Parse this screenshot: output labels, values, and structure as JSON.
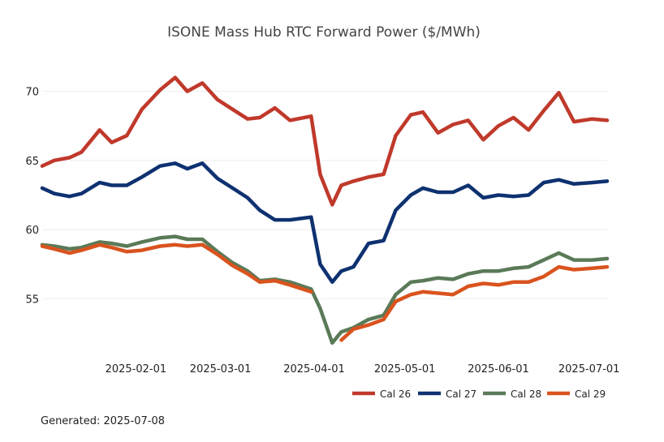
{
  "chart_data": {
    "type": "line",
    "title": "ISONE Mass Hub RTC Forward Power ($/MWh)",
    "xlabel": "",
    "ylabel": "",
    "xlim": [
      "2025-01-01",
      "2025-07-07"
    ],
    "ylim": [
      50.5,
      72.5
    ],
    "yticks": [
      55,
      60,
      65,
      70
    ],
    "xticks": [
      "2025-02-01",
      "2025-03-01",
      "2025-04-01",
      "2025-05-01",
      "2025-06-01",
      "2025-07-01"
    ],
    "grid": "y",
    "legend": "bottom-right",
    "x": [
      "2025-01-01",
      "2025-01-05",
      "2025-01-10",
      "2025-01-14",
      "2025-01-20",
      "2025-01-24",
      "2025-01-29",
      "2025-02-03",
      "2025-02-09",
      "2025-02-14",
      "2025-02-18",
      "2025-02-23",
      "2025-02-28",
      "2025-03-05",
      "2025-03-10",
      "2025-03-14",
      "2025-03-19",
      "2025-03-24",
      "2025-03-31",
      "2025-04-03",
      "2025-04-07",
      "2025-04-10",
      "2025-04-14",
      "2025-04-19",
      "2025-04-24",
      "2025-04-28",
      "2025-05-03",
      "2025-05-07",
      "2025-05-12",
      "2025-05-17",
      "2025-05-22",
      "2025-05-27",
      "2025-06-01",
      "2025-06-06",
      "2025-06-11",
      "2025-06-16",
      "2025-06-21",
      "2025-06-26",
      "2025-07-02",
      "2025-07-07"
    ],
    "series": [
      {
        "name": "Cal 26",
        "color": "#c0392b",
        "values": [
          64.6,
          65.0,
          65.2,
          65.6,
          67.2,
          66.3,
          66.8,
          68.7,
          70.1,
          71.0,
          70.0,
          70.6,
          69.4,
          68.7,
          68.0,
          68.1,
          68.8,
          67.9,
          68.2,
          64.0,
          61.8,
          63.2,
          63.5,
          63.8,
          64.0,
          66.8,
          68.3,
          68.5,
          67.0,
          67.6,
          67.9,
          66.5,
          67.5,
          68.1,
          67.2,
          68.6,
          69.9,
          67.8,
          68.0,
          67.9
        ]
      },
      {
        "name": "Cal 27",
        "color": "#0e3170",
        "values": [
          63.0,
          62.6,
          62.4,
          62.6,
          63.4,
          63.2,
          63.2,
          63.8,
          64.6,
          64.8,
          64.4,
          64.8,
          63.7,
          63.0,
          62.3,
          61.4,
          60.7,
          60.7,
          60.9,
          57.5,
          56.2,
          57.0,
          57.3,
          59.0,
          59.2,
          61.4,
          62.5,
          63.0,
          62.7,
          62.7,
          63.2,
          62.3,
          62.5,
          62.4,
          62.5,
          63.4,
          63.6,
          63.3,
          63.4,
          63.5
        ]
      },
      {
        "name": "Cal 28",
        "color": "#5a7a58",
        "values": [
          58.9,
          58.8,
          58.6,
          58.7,
          59.1,
          59.0,
          58.8,
          59.1,
          59.4,
          59.5,
          59.3,
          59.3,
          58.4,
          57.6,
          57.0,
          56.3,
          56.4,
          56.2,
          55.7,
          54.3,
          51.8,
          52.6,
          52.9,
          53.5,
          53.8,
          55.3,
          56.2,
          56.3,
          56.5,
          56.4,
          56.8,
          57.0,
          57.0,
          57.2,
          57.3,
          57.8,
          58.3,
          57.8,
          57.8,
          57.9
        ]
      },
      {
        "name": "Cal 29",
        "color": "#d9531e",
        "values": [
          58.8,
          58.6,
          58.3,
          58.5,
          58.9,
          58.7,
          58.4,
          58.5,
          58.8,
          58.9,
          58.8,
          58.9,
          58.2,
          57.4,
          56.8,
          56.2,
          56.3,
          56.0,
          55.5,
          null,
          null,
          52.0,
          52.8,
          53.1,
          53.5,
          54.8,
          55.3,
          55.5,
          55.4,
          55.3,
          55.9,
          56.1,
          56.0,
          56.2,
          56.2,
          56.6,
          57.3,
          57.1,
          57.2,
          57.3
        ]
      }
    ]
  },
  "footer": {
    "generated_text": "Generated: 2025-07-08"
  }
}
